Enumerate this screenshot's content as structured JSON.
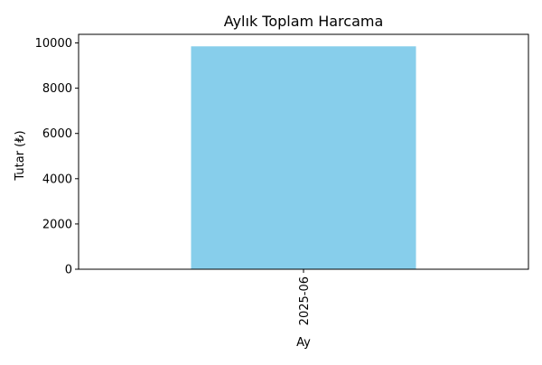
{
  "chart_data": {
    "type": "bar",
    "title": "Aylık Toplam Harcama",
    "xlabel": "Ay",
    "ylabel": "Tutar (₺)",
    "categories": [
      "2025-06"
    ],
    "values": [
      9850
    ],
    "ylim": [
      0,
      10380
    ],
    "yticks": [
      0,
      2000,
      4000,
      6000,
      8000,
      10000
    ],
    "bar_color": "#87CEEB",
    "grid": false,
    "legend": false
  }
}
